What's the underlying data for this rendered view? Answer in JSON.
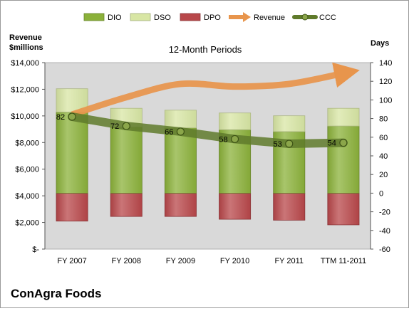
{
  "chart_data": {
    "type": "bar",
    "title": "12-Month Periods",
    "company": "ConAgra Foods",
    "left_axis_title_line1": "Revenue",
    "left_axis_title_line2": "$millions",
    "right_axis_title": "Days",
    "categories": [
      "FY 2007",
      "FY 2008",
      "FY 2009",
      "FY 2010",
      "FY 2011",
      "TTM 11-2011"
    ],
    "left_axis": {
      "min": 0,
      "max": 14000,
      "ticks": [
        0,
        2000,
        4000,
        6000,
        8000,
        10000,
        12000,
        14000
      ],
      "tick_labels": [
        "$-",
        "$2,000",
        "$4,000",
        "$6,000",
        "$8,000",
        "$10,000",
        "$12,000",
        "$14,000"
      ]
    },
    "right_axis": {
      "min": -60,
      "max": 140,
      "ticks": [
        -60,
        -40,
        -20,
        0,
        20,
        40,
        60,
        80,
        100,
        120,
        140
      ],
      "tick_labels": [
        "-60",
        "-40",
        "-20",
        "0",
        "20",
        "40",
        "60",
        "80",
        "100",
        "120",
        "140"
      ]
    },
    "series": [
      {
        "name": "DIO",
        "axis": "right",
        "values": [
          87,
          71,
          70,
          68,
          66,
          72
        ]
      },
      {
        "name": "DSO",
        "axis": "right",
        "values": [
          25,
          20,
          19,
          18,
          17,
          19
        ]
      },
      {
        "name": "DPO",
        "axis": "right",
        "values": [
          -30,
          -25,
          -25,
          -28,
          -29,
          -34
        ]
      },
      {
        "name": "Revenue",
        "axis": "left",
        "values": [
          10100,
          11400,
          12400,
          12200,
          12400,
          13200
        ]
      },
      {
        "name": "CCC",
        "axis": "right",
        "values": [
          82,
          72,
          66,
          58,
          53,
          54
        ]
      }
    ],
    "ccc_labels": [
      "82",
      "72",
      "66",
      "58",
      "53",
      "54"
    ],
    "legend_position": "top",
    "grid": false
  },
  "colors": {
    "dio": "#8bb13a",
    "dso": "#d8e6a4",
    "dpo": "#b8474a",
    "revenue": "#e8954c",
    "ccc": "#5f7a2b",
    "plot_bg": "#d9d9d9"
  }
}
